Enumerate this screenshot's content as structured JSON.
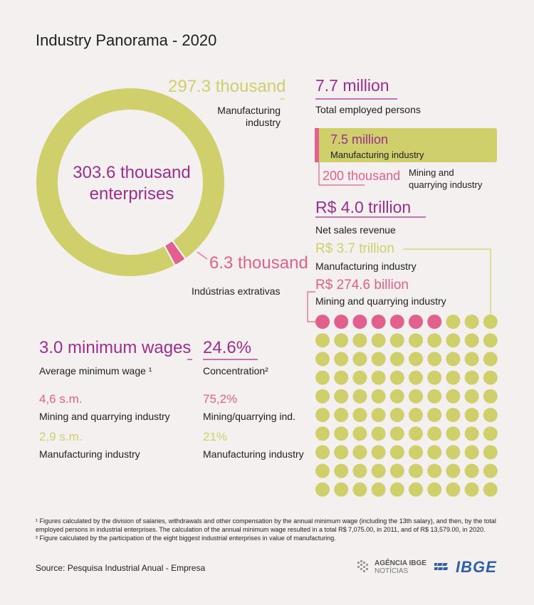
{
  "title": "Industry Panorama - 2020",
  "donut": {
    "center_line1": "303.6 thousand",
    "center_line2": "enterprises",
    "manufacturing_value": "297.3 thousand",
    "manufacturing_label_1": "Manufacturing",
    "manufacturing_label_2": "industry",
    "mining_value": "6.3 thousand",
    "mining_label": "Indústrias extrativas"
  },
  "employment": {
    "total_value": "7.7 million",
    "total_label": "Total employed persons",
    "manufacturing_value": "7.5 million",
    "manufacturing_label": "Manufacturing industry",
    "mining_value": "200 thousand",
    "mining_label_1": "Mining and",
    "mining_label_2": "quarrying  industry"
  },
  "revenue": {
    "total_value": "R$ 4.0 trillion",
    "total_label": "Net sales revenue",
    "manufacturing_value": "R$ 3.7 trillion",
    "manufacturing_label": "Manufacturing industry",
    "mining_value": "R$ 274.6 billion",
    "mining_label": "Mining and quarrying industry"
  },
  "wage": {
    "value": "3.0 minimum wages",
    "label": "Average minimum wage ¹",
    "mining_value": "4,6 s.m.",
    "mining_label": "Mining and quarrying industry",
    "manufacturing_value": "2,9 s.m.",
    "manufacturing_label": "Manufacturing industry"
  },
  "concentration": {
    "value": "24.6%",
    "label": "Concentration²",
    "mining_value": "75,2%",
    "mining_label": "Mining/quarrying ind.",
    "manufacturing_value": "21%",
    "manufacturing_label": "Manufacturing industry"
  },
  "footnote1": "¹ Figures calculated by the division of salaries, withdrawals and other compensation by the annual minimum wage (including the 13th salary), and then, by the total employed persons in industrial enterprises. The calculation of the  annual minimum wage resulted in a total R$ 7,075.00, in 2011, and of R$ 13,579.00, in 2020.",
  "footnote2": "² Figure calculated by the participation of the eight biggest industrial enterprises in value of manufacturing.",
  "source": "Source: Pesquisa Industrial Anual - Empresa",
  "logos": {
    "agencia_1": "AGÊNCIA IBGE",
    "agencia_2": "NOTÍCIAS",
    "ibge": "IBGE"
  },
  "colors": {
    "olive": "#cfcf6b",
    "pink": "#e0608e",
    "purple": "#9b2f8f",
    "background": "#f3f0ef"
  },
  "chart_data": [
    {
      "type": "pie",
      "categories": [
        "Manufacturing industry",
        "Indústrias extrativas"
      ],
      "values": [
        297.3,
        6.3
      ],
      "total": 303.6,
      "unit": "thousand enterprises"
    },
    {
      "type": "bar",
      "categories": [
        "Manufacturing industry",
        "Mining and quarrying industry"
      ],
      "values": [
        7.5,
        0.2
      ],
      "total": 7.7,
      "unit": "million employed persons"
    },
    {
      "type": "heatmap",
      "categories": [
        "Mining and quarrying industry",
        "Manufacturing industry"
      ],
      "grid": [
        10,
        10
      ],
      "highlighted_dots": 7,
      "total_dots": 100,
      "values": [
        274.6,
        3700
      ],
      "unit": "R$ billion"
    }
  ]
}
